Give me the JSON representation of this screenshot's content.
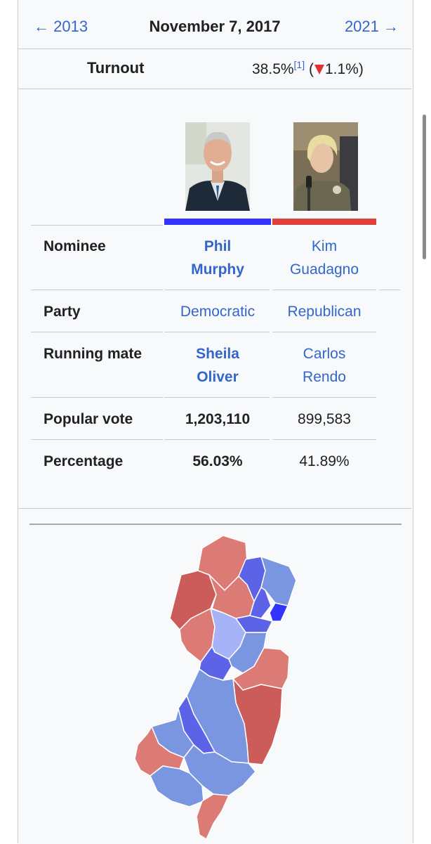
{
  "nav": {
    "prev_label": "← 2013",
    "date": "November 7, 2017",
    "next_label": "2021 →"
  },
  "turnout": {
    "label": "Turnout",
    "value": "38.5%",
    "ref": "[1]",
    "change_open": "(",
    "change_value": "1.1%)",
    "change_direction": "down"
  },
  "candidates": [
    {
      "nominee_line1": "Phil",
      "nominee_line2": "Murphy",
      "party": "Democratic",
      "mate_line1": "Sheila",
      "mate_line2": "Oliver",
      "popular_vote": "1,203,110",
      "percentage": "56.03%",
      "color": "#3333ff",
      "winner": true
    },
    {
      "nominee_line1": "Kim",
      "nominee_line2": "Guadagno",
      "party": "Republican",
      "mate_line1": "Carlos",
      "mate_line2": "Rendo",
      "popular_vote": "899,583",
      "percentage": "41.89%",
      "color": "#e0403a",
      "winner": false
    }
  ],
  "rows": {
    "nominee": "Nominee",
    "party": "Party",
    "running_mate": "Running mate",
    "popular_vote": "Popular vote",
    "percentage": "Percentage"
  },
  "colors": {
    "link": "#3366cc",
    "dem_strong": "#3333ff",
    "dem_mid": "#5c63e6",
    "dem_light": "#7b96e0",
    "dem_pale": "#a7b3f7",
    "rep_mid": "#dc7a76",
    "rep_strong": "#cc5c5a"
  },
  "map": {
    "icon": "new-jersey-county-results-map"
  }
}
